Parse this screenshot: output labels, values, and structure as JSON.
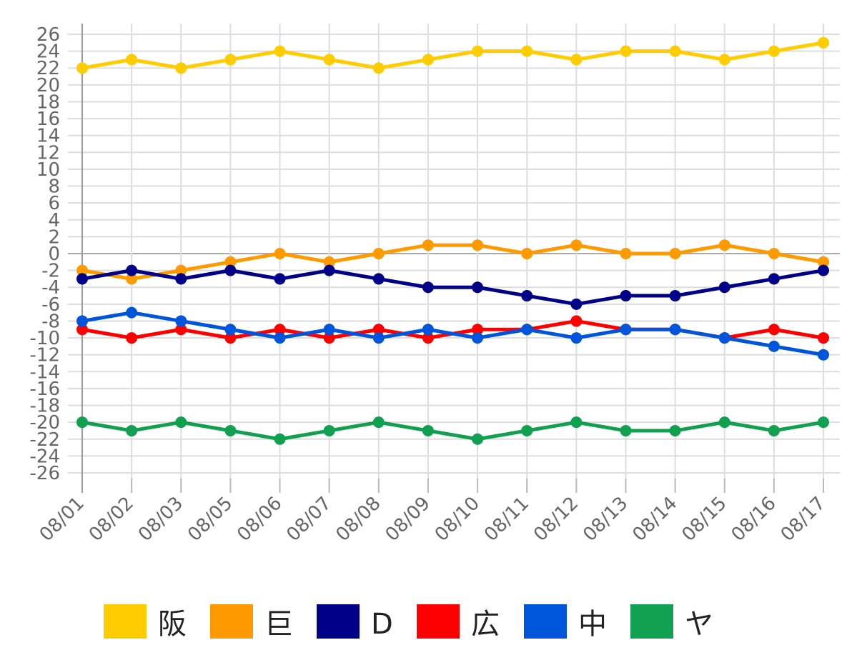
{
  "chart_data": {
    "type": "line",
    "title": "",
    "xlabel": "",
    "ylabel": "",
    "x": [
      "08/01",
      "08/02",
      "08/03",
      "08/05",
      "08/06",
      "08/07",
      "08/08",
      "08/09",
      "08/10",
      "08/11",
      "08/12",
      "08/13",
      "08/14",
      "08/15",
      "08/16",
      "08/17"
    ],
    "ylim": [
      -26,
      26
    ],
    "ytick_step": 2,
    "grid": true,
    "legend_position": "bottom",
    "series": [
      {
        "name": "阪",
        "color": "#FFCC00",
        "values": [
          22,
          23,
          22,
          23,
          24,
          23,
          22,
          23,
          24,
          24,
          23,
          24,
          24,
          23,
          24,
          25
        ]
      },
      {
        "name": "巨",
        "color": "#FF9900",
        "values": [
          -2,
          -3,
          -2,
          -1,
          0,
          -1,
          0,
          1,
          1,
          0,
          1,
          0,
          0,
          1,
          0,
          -1
        ]
      },
      {
        "name": "D",
        "color": "#000088",
        "values": [
          -3,
          -2,
          -3,
          -2,
          -3,
          -2,
          -3,
          -4,
          -4,
          -5,
          -6,
          -5,
          -5,
          -4,
          -3,
          -2
        ]
      },
      {
        "name": "広",
        "color": "#FF0000",
        "values": [
          -9,
          -10,
          -9,
          -10,
          -9,
          -10,
          -9,
          -10,
          -9,
          -9,
          -8,
          -9,
          -9,
          -10,
          -9,
          -10
        ]
      },
      {
        "name": "中",
        "color": "#0055DD",
        "values": [
          -8,
          -7,
          -8,
          -9,
          -10,
          -9,
          -10,
          -9,
          -10,
          -9,
          -10,
          -9,
          -9,
          -10,
          -11,
          -12
        ]
      },
      {
        "name": "ヤ",
        "color": "#11A050",
        "values": [
          -20,
          -21,
          -20,
          -21,
          -22,
          -21,
          -20,
          -21,
          -22,
          -21,
          -20,
          -21,
          -21,
          -20,
          -21,
          -20
        ]
      }
    ]
  }
}
